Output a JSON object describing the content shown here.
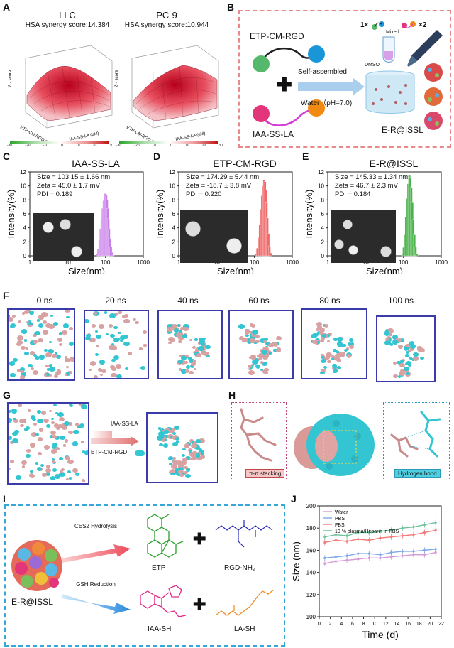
{
  "panels": {
    "A": {
      "label": "A",
      "left_title": "LLC",
      "left_score": "HSA synergy score:14.384",
      "right_title": "PC-9",
      "right_score": "HSA synergy score:10.944",
      "zaxis": "δ - score",
      "x_axis": "IAA-SS-LA (uM)",
      "y_axis": "ETP-CM-RGD (uM)",
      "colorbar_ticks": [
        "-30",
        "-20",
        "-10",
        "0",
        "10",
        "20",
        "30"
      ]
    },
    "B": {
      "label": "B",
      "mol1": "ETP-CM-RGD",
      "mol2": "IAA-SS-LA",
      "arrow_top": "Self-assembled",
      "arrow_bottom": "Water（pH=7.0)",
      "mixed": "Mixed",
      "x1": "1×",
      "x2": "×2",
      "solvent": "DMSO",
      "product": "E-R@ISSL"
    },
    "C": {
      "label": "C",
      "title": "IAA-SS-LA",
      "size": "Size = 103.15 ± 1.66 nm",
      "zeta": "Zeta = 45.0 ± 1.7 mV",
      "pdi": "PDI = 0.189"
    },
    "D": {
      "label": "D",
      "title": "ETP-CM-RGD",
      "size": "Size = 174.29 ± 5.44 nm",
      "zeta": "Zeta = -18.7 ± 3.8 mV",
      "pdi": "PDI = 0.220"
    },
    "E": {
      "label": "E",
      "title": "E-R@ISSL",
      "size": "Size = 145.33 ± 1.34 nm",
      "zeta": "Zeta = 46.7 ± 2.3 mV",
      "pdi": "PDI = 0.184"
    },
    "dls_axes": {
      "ylabel": "Intensity(%)",
      "xlabel": "Size(nm)",
      "yticks": [
        "0",
        "2",
        "4",
        "6",
        "8",
        "10",
        "12"
      ],
      "xticks": [
        "1",
        "10",
        "100",
        "1000"
      ]
    },
    "F": {
      "label": "F",
      "times": [
        "0 ns",
        "20 ns",
        "40 ns",
        "60 ns",
        "80 ns",
        "100 ns"
      ]
    },
    "G": {
      "label": "G",
      "legend1": "IAA-SS-LA",
      "legend2": "ETP-CM-RGD"
    },
    "H": {
      "label": "H",
      "left_caption": "π-π stacking",
      "right_caption": "Hydrogen bond"
    },
    "I": {
      "label": "I",
      "particle": "E-R@ISSL",
      "path1": "CES2 Hydrolysis",
      "path2": "GSH Reduction",
      "p1": "ETP",
      "p2": "RGD-NH₂",
      "p3": "IAA-SH",
      "p4": "LA-SH"
    },
    "J": {
      "label": "J",
      "ylabel": "Size (nm)",
      "xlabel": "Time (d)"
    }
  },
  "chart_data": [
    {
      "type": "bar",
      "panel": "C",
      "title": "IAA-SS-LA",
      "xlabel": "Size(nm)",
      "ylabel": "Intensity(%)",
      "xscale": "log",
      "xlim": [
        1,
        1000
      ],
      "ylim": [
        0,
        12
      ],
      "color": "#c77ee8",
      "x": [
        60,
        65,
        70,
        75,
        80,
        85,
        90,
        95,
        100,
        105,
        110,
        115,
        120,
        125,
        130,
        140,
        150,
        160
      ],
      "values": [
        0.3,
        1.0,
        2.2,
        3.8,
        5.3,
        6.8,
        7.9,
        8.6,
        8.9,
        8.7,
        8.0,
        6.8,
        5.3,
        3.8,
        2.4,
        1.3,
        0.5,
        0.1
      ]
    },
    {
      "type": "bar",
      "panel": "D",
      "title": "ETP-CM-RGD",
      "xlabel": "Size(nm)",
      "ylabel": "Intensity(%)",
      "xscale": "log",
      "xlim": [
        1,
        1000
      ],
      "ylim": [
        0,
        12
      ],
      "color": "#f06a6a",
      "x": [
        110,
        120,
        130,
        140,
        150,
        160,
        170,
        180,
        190,
        200,
        210,
        220,
        235,
        250,
        270
      ],
      "values": [
        0.3,
        1.1,
        2.6,
        4.5,
        6.7,
        8.6,
        10.0,
        10.8,
        10.6,
        9.4,
        7.6,
        5.4,
        3.2,
        1.4,
        0.4
      ]
    },
    {
      "type": "bar",
      "panel": "E",
      "title": "E-R@ISSL",
      "xlabel": "Size(nm)",
      "ylabel": "Intensity(%)",
      "xscale": "log",
      "xlim": [
        1,
        1000
      ],
      "ylim": [
        0,
        12
      ],
      "color": "#4ab34a",
      "x": [
        95,
        102,
        110,
        118,
        126,
        135,
        144,
        153,
        162,
        172,
        182,
        195,
        210,
        225
      ],
      "values": [
        0.3,
        1.2,
        3.0,
        5.6,
        8.2,
        10.3,
        11.5,
        11.2,
        9.8,
        7.6,
        5.2,
        3.0,
        1.3,
        0.3
      ]
    },
    {
      "type": "line",
      "panel": "J",
      "xlabel": "Time (d)",
      "ylabel": "Size (nm)",
      "xlim": [
        0,
        22
      ],
      "ylim": [
        100,
        200
      ],
      "legend": "top-left",
      "xticks": [
        0,
        2,
        4,
        6,
        8,
        10,
        12,
        14,
        16,
        18,
        20,
        22
      ],
      "yticks": [
        100,
        120,
        140,
        160,
        180,
        200
      ],
      "x": [
        1,
        3,
        5,
        7,
        9,
        11,
        13,
        15,
        17,
        19,
        21
      ],
      "series": [
        {
          "name": "Water",
          "color": "#d59ad6",
          "values": [
            148,
            150,
            151,
            152,
            153,
            153,
            154,
            155,
            156,
            156,
            158
          ]
        },
        {
          "name": "PBS",
          "color": "#7fa8e8",
          "values": [
            153,
            154,
            155,
            157,
            157,
            156,
            158,
            159,
            159,
            160,
            161
          ]
        },
        {
          "name": "FBS",
          "color": "#f07a7a",
          "values": [
            167,
            169,
            168,
            170,
            169,
            171,
            172,
            173,
            174,
            176,
            178
          ]
        },
        {
          "name": "10 % plasma/Heparin in PBS",
          "color": "#6dc39a",
          "values": [
            172,
            174,
            173,
            176,
            176,
            177,
            178,
            180,
            181,
            183,
            185
          ]
        }
      ]
    }
  ]
}
